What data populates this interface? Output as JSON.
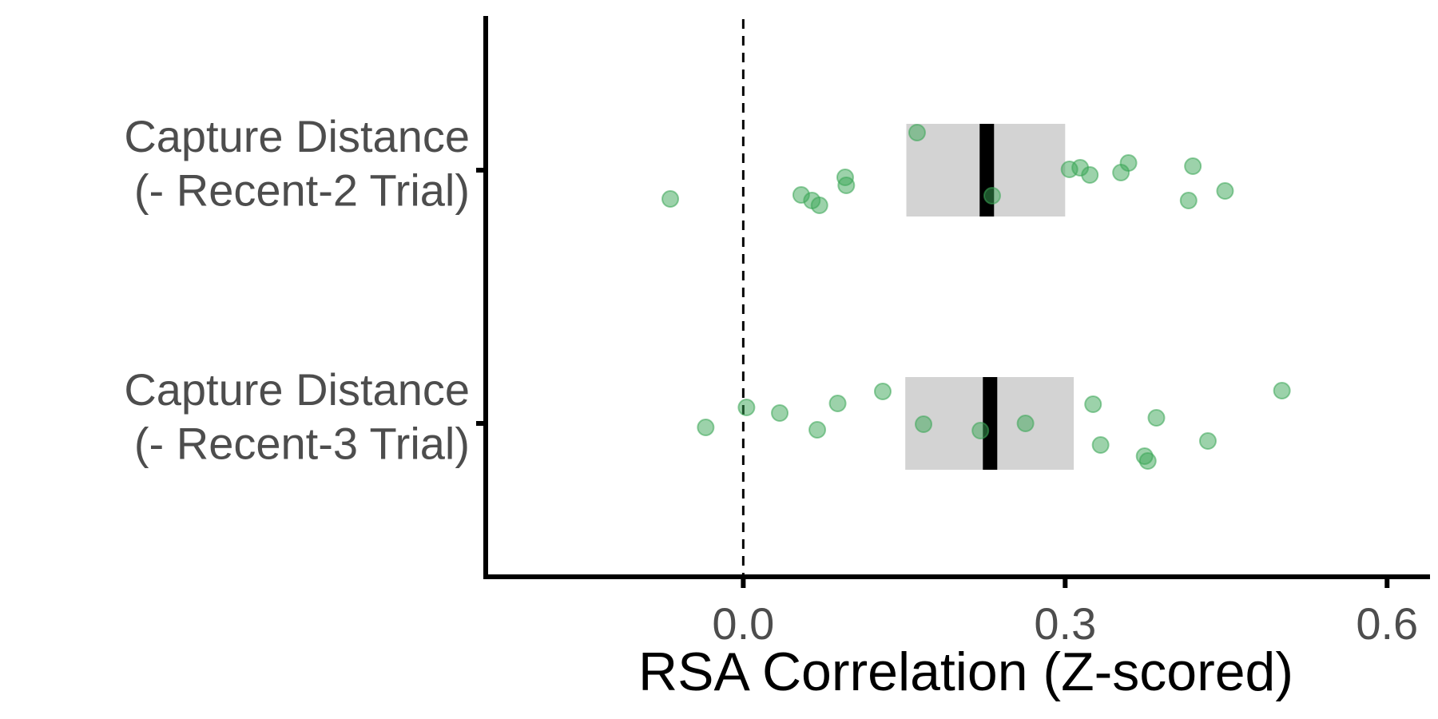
{
  "chart_data": {
    "type": "scatter",
    "orientation": "horizontal",
    "xlabel": "RSA Correlation (Z-scored)",
    "xlim": [
      -0.24,
      0.64
    ],
    "xticks": [
      0.0,
      0.3,
      0.6
    ],
    "xtick_labels": [
      "0.0",
      "0.3",
      "0.6"
    ],
    "reference_line": {
      "x": 0,
      "style": "dashed"
    },
    "grid": false,
    "legend": "none",
    "colors": {
      "point": "#3aa655",
      "interval": "#d3d3d3",
      "mean": "#000000",
      "axis": "#000000"
    },
    "categories": [
      {
        "label_lines": [
          "Capture Distance",
          "(- Recent-2 Trial)"
        ],
        "mean": 0.227,
        "interval": [
          0.152,
          0.3
        ],
        "points": [
          -0.068,
          0.054,
          0.064,
          0.071,
          0.095,
          0.096,
          0.162,
          0.232,
          0.304,
          0.314,
          0.323,
          0.352,
          0.359,
          0.415,
          0.419,
          0.449
        ]
      },
      {
        "label_lines": [
          "Capture Distance",
          "(- Recent-3 Trial)"
        ],
        "mean": 0.23,
        "interval": [
          0.151,
          0.308
        ],
        "points": [
          -0.035,
          0.003,
          0.034,
          0.069,
          0.088,
          0.13,
          0.168,
          0.221,
          0.263,
          0.326,
          0.333,
          0.385,
          0.374,
          0.377,
          0.433,
          0.502
        ]
      }
    ]
  }
}
